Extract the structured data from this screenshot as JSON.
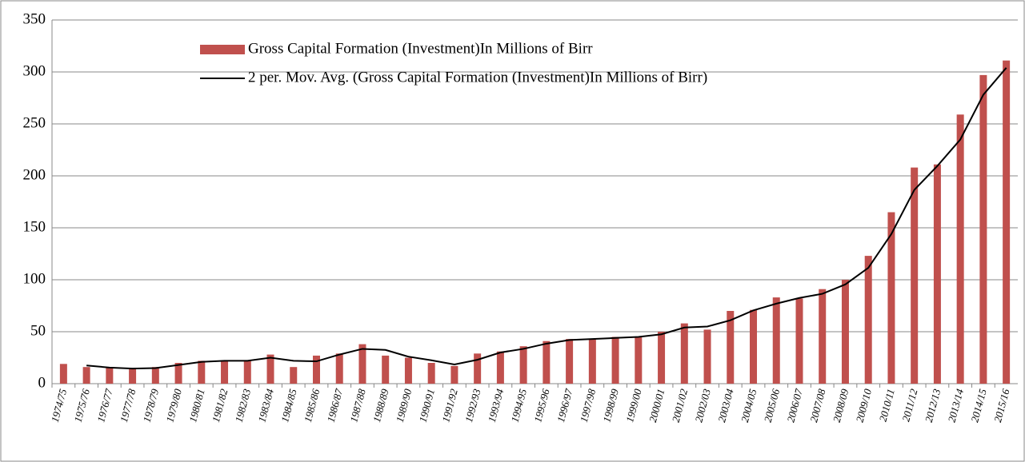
{
  "chart_data": {
    "type": "bar",
    "categories": [
      "1974/75",
      "1975/76",
      "1976/77",
      "1977/78",
      "1978/79",
      "1979/80",
      "1980/81",
      "1981/82",
      "1982/83",
      "1983/84",
      "1984/85",
      "1985/86",
      "1986/87",
      "1987/88",
      "1988/89",
      "1989/90",
      "1990/91",
      "1991/92",
      "1992/93",
      "1993/94",
      "1994/95",
      "1995/96",
      "1996/97",
      "1997/98",
      "1998/99",
      "1999/00",
      "2000/01",
      "2001/02",
      "2002/03",
      "2003/04",
      "2004/05",
      "2005/06",
      "2006/07",
      "2007/08",
      "2008/09",
      "2009/10",
      "2010/11",
      "2011/12",
      "2012/13",
      "2013/14",
      "2014/15",
      "2015/16"
    ],
    "series": [
      {
        "name": "Gross Capital Formation (Investment)In Millions of Birr",
        "type": "bar",
        "color": "#c0504d",
        "values": [
          19,
          16,
          15,
          14,
          16,
          20,
          22,
          22,
          22,
          28,
          16,
          27,
          29,
          38,
          27,
          25,
          20,
          17,
          29,
          31,
          36,
          41,
          43,
          43,
          45,
          45,
          50,
          58,
          52,
          70,
          71,
          83,
          82,
          91,
          100,
          123,
          165,
          208,
          211,
          259,
          297,
          311
        ]
      },
      {
        "name": "2 per. Mov. Avg. (Gross Capital Formation (Investment)In Millions of Birr)",
        "type": "line",
        "color": "#000000",
        "values": [
          null,
          17.5,
          15.5,
          14.5,
          15,
          18,
          21,
          22,
          22,
          25,
          22,
          21.5,
          28,
          33.5,
          32.5,
          26,
          22.5,
          18.5,
          23,
          30,
          33.5,
          38.5,
          42,
          43,
          44,
          45,
          47.5,
          54,
          55,
          61,
          70.5,
          77,
          82.5,
          86.5,
          95.5,
          111.5,
          144,
          186.5,
          209.5,
          235,
          278,
          304
        ]
      }
    ],
    "ylim": [
      0,
      350
    ],
    "yticks": [
      0,
      50,
      100,
      150,
      200,
      250,
      300,
      350
    ],
    "grid": true,
    "legend": "top-left"
  }
}
